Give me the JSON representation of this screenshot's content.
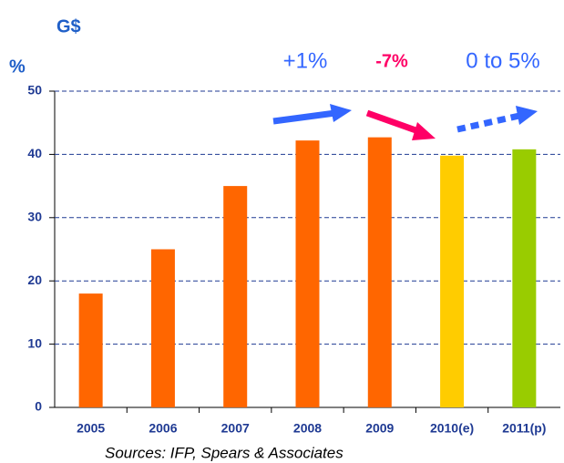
{
  "chart_data": {
    "type": "bar",
    "unit_labels": [
      "G$",
      "%"
    ],
    "categories": [
      "2005",
      "2006",
      "2007",
      "2008",
      "2009",
      "2010(e)",
      "2011(p)"
    ],
    "values": [
      18,
      25,
      35,
      42.2,
      42.7,
      39.8,
      40.8
    ],
    "colors": [
      "#ff6600",
      "#ff6600",
      "#ff6600",
      "#ff6600",
      "#ff6600",
      "#ffcc00",
      "#99cc00"
    ],
    "ylim": [
      0,
      50
    ],
    "yticks": [
      0,
      10,
      20,
      30,
      40,
      50
    ],
    "grid": true,
    "annotations": [
      {
        "text": "+1%",
        "color": "#3366ff"
      },
      {
        "text": "-7%",
        "color": "#ff0066"
      },
      {
        "text": "0 to 5%",
        "color": "#3366ff"
      }
    ],
    "source": "Sources: IFP, Spears & Associates"
  }
}
